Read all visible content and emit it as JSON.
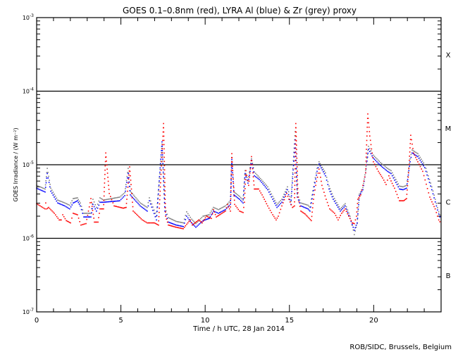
{
  "chart_data": {
    "type": "scatter",
    "title": "GOES 0.1–0.8nm (red), LYRA Al (blue) & Zr (grey) proxy",
    "xlabel": "Time / h UTC, 28 Jan 2014",
    "ylabel": "GOES Irradiance / (W m⁻²)",
    "xlim": [
      0,
      24
    ],
    "ylim": [
      1e-07,
      0.001
    ],
    "yscale": "log",
    "x_ticks": [
      {
        "v": 0,
        "label": "0"
      },
      {
        "v": 5,
        "label": "5"
      },
      {
        "v": 10,
        "label": "10"
      },
      {
        "v": 15,
        "label": "15"
      },
      {
        "v": 20,
        "label": "20"
      }
    ],
    "y_ticks": [
      {
        "exp": -3,
        "base": "10",
        "sup": "-3"
      },
      {
        "exp": -4,
        "base": "10",
        "sup": "-4"
      },
      {
        "exp": -5,
        "base": "10",
        "sup": "-5"
      },
      {
        "exp": -6,
        "base": "10",
        "sup": "-6"
      },
      {
        "exp": -7,
        "base": "10",
        "sup": "-7"
      }
    ],
    "reference_lines_exp": [
      -4,
      -5,
      -6
    ],
    "flare_classes": [
      {
        "label": "X",
        "exp": -3.5
      },
      {
        "label": "M",
        "exp": -4.5
      },
      {
        "label": "C",
        "exp": -5.5
      },
      {
        "label": "B",
        "exp": -6.5
      }
    ],
    "credit": "ROB/SIDC, Brussels, Belgium",
    "series": [
      {
        "name": "LYRA Zr proxy",
        "color": "#808080",
        "point_format": "[hour, log10 irradiance]",
        "points": [
          [
            0,
            -5.28
          ],
          [
            0.5,
            -5.33
          ],
          [
            0.63,
            -5.05
          ],
          [
            0.84,
            -5.32
          ],
          [
            1.25,
            -5.48
          ],
          [
            1.67,
            -5.52
          ],
          [
            1.96,
            -5.55
          ],
          [
            2.17,
            -5.46
          ],
          [
            2.42,
            -5.45
          ],
          [
            2.59,
            -5.52
          ],
          [
            2.8,
            -5.66
          ],
          [
            3.22,
            -5.66
          ],
          [
            3.34,
            -5.47
          ],
          [
            3.55,
            -5.58
          ],
          [
            3.76,
            -5.45
          ],
          [
            3.97,
            -5.48
          ],
          [
            4.93,
            -5.44
          ],
          [
            5.23,
            -5.38
          ],
          [
            5.43,
            -5.05
          ],
          [
            5.56,
            -5.36
          ],
          [
            6.15,
            -5.52
          ],
          [
            6.56,
            -5.58
          ],
          [
            6.69,
            -5.45
          ],
          [
            7.11,
            -5.7
          ],
          [
            7.44,
            -4.72
          ],
          [
            7.61,
            -5.58
          ],
          [
            7.82,
            -5.72
          ],
          [
            8.28,
            -5.77
          ],
          [
            8.7,
            -5.79
          ],
          [
            8.9,
            -5.64
          ],
          [
            9.2,
            -5.74
          ],
          [
            9.45,
            -5.8
          ],
          [
            9.87,
            -5.7
          ],
          [
            10.24,
            -5.68
          ],
          [
            10.49,
            -5.58
          ],
          [
            10.79,
            -5.61
          ],
          [
            11.2,
            -5.56
          ],
          [
            11.5,
            -5.49
          ],
          [
            11.58,
            -4.9
          ],
          [
            11.71,
            -5.37
          ],
          [
            12.04,
            -5.43
          ],
          [
            12.25,
            -5.48
          ],
          [
            12.37,
            -5.08
          ],
          [
            12.54,
            -5.22
          ],
          [
            12.75,
            -4.92
          ],
          [
            12.92,
            -5.1
          ],
          [
            13.21,
            -5.17
          ],
          [
            13.71,
            -5.3
          ],
          [
            14.01,
            -5.43
          ],
          [
            14.26,
            -5.54
          ],
          [
            14.55,
            -5.47
          ],
          [
            14.88,
            -5.3
          ],
          [
            15.09,
            -5.5
          ],
          [
            15.34,
            -4.55
          ],
          [
            15.47,
            -5.4
          ],
          [
            15.68,
            -5.52
          ],
          [
            16.1,
            -5.55
          ],
          [
            16.22,
            -5.58
          ],
          [
            16.43,
            -5.3
          ],
          [
            16.64,
            -5.05
          ],
          [
            16.76,
            -4.96
          ],
          [
            17.14,
            -5.11
          ],
          [
            17.35,
            -5.29
          ],
          [
            17.6,
            -5.43
          ],
          [
            18.02,
            -5.6
          ],
          [
            18.31,
            -5.53
          ],
          [
            18.6,
            -5.7
          ],
          [
            18.85,
            -5.95
          ],
          [
            19.02,
            -5.8
          ],
          [
            19.15,
            -5.4
          ],
          [
            19.36,
            -5.31
          ],
          [
            19.52,
            -5.08
          ],
          [
            19.69,
            -4.75
          ],
          [
            19.98,
            -4.87
          ],
          [
            20.4,
            -4.97
          ],
          [
            20.82,
            -5.05
          ],
          [
            21.03,
            -5.08
          ],
          [
            21.53,
            -5.29
          ],
          [
            21.74,
            -5.3
          ],
          [
            21.95,
            -5.28
          ],
          [
            22.16,
            -4.92
          ],
          [
            22.28,
            -4.8
          ],
          [
            22.62,
            -4.85
          ],
          [
            23.03,
            -5.0
          ],
          [
            23.45,
            -5.3
          ],
          [
            23.86,
            -5.64
          ],
          [
            24,
            -5.72
          ]
        ]
      },
      {
        "name": "LYRA Al proxy",
        "color": "#0000ff",
        "point_format": "[hour, log10 irradiance]",
        "points": [
          [
            0,
            -5.32
          ],
          [
            0.5,
            -5.37
          ],
          [
            0.63,
            -5.12
          ],
          [
            0.84,
            -5.36
          ],
          [
            1.25,
            -5.52
          ],
          [
            1.67,
            -5.56
          ],
          [
            1.96,
            -5.6
          ],
          [
            2.17,
            -5.52
          ],
          [
            2.42,
            -5.49
          ],
          [
            2.59,
            -5.56
          ],
          [
            2.8,
            -5.71
          ],
          [
            3.22,
            -5.71
          ],
          [
            3.34,
            -5.54
          ],
          [
            3.55,
            -5.63
          ],
          [
            3.76,
            -5.51
          ],
          [
            3.97,
            -5.51
          ],
          [
            4.93,
            -5.49
          ],
          [
            5.23,
            -5.42
          ],
          [
            5.43,
            -5.12
          ],
          [
            5.56,
            -5.41
          ],
          [
            6.15,
            -5.56
          ],
          [
            6.56,
            -5.63
          ],
          [
            6.69,
            -5.49
          ],
          [
            7.11,
            -5.75
          ],
          [
            7.44,
            -4.69
          ],
          [
            7.61,
            -5.63
          ],
          [
            7.82,
            -5.78
          ],
          [
            8.28,
            -5.82
          ],
          [
            8.7,
            -5.84
          ],
          [
            8.9,
            -5.7
          ],
          [
            9.2,
            -5.79
          ],
          [
            9.45,
            -5.85
          ],
          [
            9.87,
            -5.76
          ],
          [
            10.24,
            -5.73
          ],
          [
            10.49,
            -5.63
          ],
          [
            10.79,
            -5.66
          ],
          [
            11.2,
            -5.61
          ],
          [
            11.5,
            -5.54
          ],
          [
            11.58,
            -4.93
          ],
          [
            11.71,
            -5.41
          ],
          [
            12.04,
            -5.47
          ],
          [
            12.25,
            -5.52
          ],
          [
            12.37,
            -5.12
          ],
          [
            12.54,
            -5.25
          ],
          [
            12.67,
            -5.09
          ],
          [
            12.75,
            -4.94
          ],
          [
            12.92,
            -5.15
          ],
          [
            13.21,
            -5.2
          ],
          [
            13.71,
            -5.34
          ],
          [
            14.01,
            -5.47
          ],
          [
            14.26,
            -5.58
          ],
          [
            14.55,
            -5.51
          ],
          [
            14.88,
            -5.34
          ],
          [
            15.09,
            -5.54
          ],
          [
            15.34,
            -4.66
          ],
          [
            15.47,
            -5.44
          ],
          [
            15.68,
            -5.56
          ],
          [
            16.1,
            -5.6
          ],
          [
            16.22,
            -5.63
          ],
          [
            16.43,
            -5.35
          ],
          [
            16.64,
            -5.09
          ],
          [
            16.76,
            -4.99
          ],
          [
            17.14,
            -5.15
          ],
          [
            17.35,
            -5.33
          ],
          [
            17.6,
            -5.47
          ],
          [
            18.02,
            -5.63
          ],
          [
            18.31,
            -5.56
          ],
          [
            18.6,
            -5.73
          ],
          [
            18.85,
            -5.89
          ],
          [
            19.02,
            -5.79
          ],
          [
            19.15,
            -5.42
          ],
          [
            19.36,
            -5.34
          ],
          [
            19.52,
            -5.11
          ],
          [
            19.69,
            -4.79
          ],
          [
            19.98,
            -4.91
          ],
          [
            20.4,
            -5.01
          ],
          [
            20.82,
            -5.09
          ],
          [
            21.03,
            -5.12
          ],
          [
            21.53,
            -5.33
          ],
          [
            21.74,
            -5.34
          ],
          [
            21.95,
            -5.32
          ],
          [
            22.16,
            -4.96
          ],
          [
            22.28,
            -4.84
          ],
          [
            22.62,
            -4.89
          ],
          [
            23.03,
            -5.04
          ],
          [
            23.45,
            -5.34
          ],
          [
            23.86,
            -5.67
          ],
          [
            24,
            -5.75
          ]
        ]
      },
      {
        "name": "GOES 0.1-0.8nm",
        "color": "#ff0000",
        "point_format": "[hour, log10 irradiance]",
        "points": [
          [
            0,
            -5.53
          ],
          [
            0.5,
            -5.6
          ],
          [
            0.54,
            -5.52
          ],
          [
            0.6,
            -5.6
          ],
          [
            0.71,
            -5.58
          ],
          [
            1.05,
            -5.66
          ],
          [
            1.34,
            -5.75
          ],
          [
            1.46,
            -5.75
          ],
          [
            1.55,
            -5.68
          ],
          [
            1.76,
            -5.76
          ],
          [
            2.01,
            -5.79
          ],
          [
            2.17,
            -5.66
          ],
          [
            2.42,
            -5.68
          ],
          [
            2.63,
            -5.82
          ],
          [
            2.93,
            -5.8
          ],
          [
            3.22,
            -5.46
          ],
          [
            3.43,
            -5.78
          ],
          [
            3.64,
            -5.78
          ],
          [
            3.76,
            -5.6
          ],
          [
            3.97,
            -5.6
          ],
          [
            4.1,
            -4.84
          ],
          [
            4.31,
            -5.39
          ],
          [
            4.6,
            -5.56
          ],
          [
            5.14,
            -5.59
          ],
          [
            5.31,
            -5.58
          ],
          [
            5.52,
            -5.03
          ],
          [
            5.73,
            -5.63
          ],
          [
            6.27,
            -5.75
          ],
          [
            6.56,
            -5.79
          ],
          [
            6.98,
            -5.79
          ],
          [
            7.23,
            -5.82
          ],
          [
            7.53,
            -4.44
          ],
          [
            7.65,
            -5.7
          ],
          [
            7.82,
            -5.82
          ],
          [
            8.28,
            -5.85
          ],
          [
            8.7,
            -5.87
          ],
          [
            9.11,
            -5.75
          ],
          [
            9.24,
            -5.82
          ],
          [
            9.62,
            -5.75
          ],
          [
            9.82,
            -5.79
          ],
          [
            10.08,
            -5.7
          ],
          [
            10.37,
            -5.73
          ],
          [
            10.49,
            -5.61
          ],
          [
            10.66,
            -5.71
          ],
          [
            11.2,
            -5.63
          ],
          [
            11.33,
            -5.54
          ],
          [
            11.5,
            -5.63
          ],
          [
            11.58,
            -4.85
          ],
          [
            11.75,
            -5.54
          ],
          [
            12.04,
            -5.63
          ],
          [
            12.25,
            -5.65
          ],
          [
            12.33,
            -5.51
          ],
          [
            12.42,
            -5.08
          ],
          [
            12.58,
            -5.28
          ],
          [
            12.75,
            -4.89
          ],
          [
            12.92,
            -5.33
          ],
          [
            13.17,
            -5.33
          ],
          [
            13.38,
            -5.41
          ],
          [
            13.71,
            -5.56
          ],
          [
            14.01,
            -5.68
          ],
          [
            14.21,
            -5.75
          ],
          [
            14.34,
            -5.7
          ],
          [
            14.55,
            -5.56
          ],
          [
            14.84,
            -5.39
          ],
          [
            14.97,
            -5.47
          ],
          [
            15.18,
            -5.58
          ],
          [
            15.3,
            -5.56
          ],
          [
            15.38,
            -4.44
          ],
          [
            15.51,
            -5.44
          ],
          [
            15.68,
            -5.63
          ],
          [
            15.93,
            -5.67
          ],
          [
            16.3,
            -5.76
          ],
          [
            16.43,
            -5.47
          ],
          [
            16.56,
            -5.28
          ],
          [
            16.76,
            -5.06
          ],
          [
            16.93,
            -5.28
          ],
          [
            17.18,
            -5.47
          ],
          [
            17.39,
            -5.6
          ],
          [
            17.68,
            -5.66
          ],
          [
            17.89,
            -5.75
          ],
          [
            18.1,
            -5.66
          ],
          [
            18.31,
            -5.6
          ],
          [
            18.52,
            -5.7
          ],
          [
            18.73,
            -5.79
          ],
          [
            18.85,
            -5.8
          ],
          [
            18.98,
            -5.7
          ],
          [
            19.06,
            -5.47
          ],
          [
            19.23,
            -5.41
          ],
          [
            19.36,
            -5.28
          ],
          [
            19.52,
            -5.11
          ],
          [
            19.57,
            -4.79
          ],
          [
            19.65,
            -4.31
          ],
          [
            19.77,
            -4.61
          ],
          [
            19.98,
            -4.96
          ],
          [
            20.28,
            -5.09
          ],
          [
            20.53,
            -5.18
          ],
          [
            20.74,
            -5.27
          ],
          [
            20.9,
            -5.15
          ],
          [
            21.03,
            -5.22
          ],
          [
            21.24,
            -5.32
          ],
          [
            21.53,
            -5.49
          ],
          [
            21.78,
            -5.49
          ],
          [
            21.95,
            -5.46
          ],
          [
            22.07,
            -5.11
          ],
          [
            22.2,
            -4.6
          ],
          [
            22.37,
            -4.84
          ],
          [
            22.62,
            -4.96
          ],
          [
            22.91,
            -5.09
          ],
          [
            23.33,
            -5.44
          ],
          [
            23.65,
            -5.6
          ],
          [
            23.86,
            -5.75
          ],
          [
            24,
            -5.8
          ]
        ]
      }
    ]
  }
}
